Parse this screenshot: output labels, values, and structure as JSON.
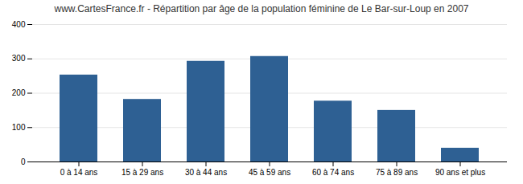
{
  "chart_data": {
    "type": "bar",
    "title": "www.CartesFrance.fr - Répartition par âge de la population féminine de Le Bar-sur-Loup en 2007",
    "categories": [
      "0 à 14 ans",
      "15 à 29 ans",
      "30 à 44 ans",
      "45 à 59 ans",
      "60 à 74 ans",
      "75 à 89 ans",
      "90 ans et plus"
    ],
    "values": [
      253,
      182,
      293,
      307,
      177,
      150,
      40
    ],
    "color": "#2e6093",
    "ylim": [
      0,
      400
    ],
    "yticks": [
      0,
      100,
      200,
      300,
      400
    ],
    "grid": true
  }
}
